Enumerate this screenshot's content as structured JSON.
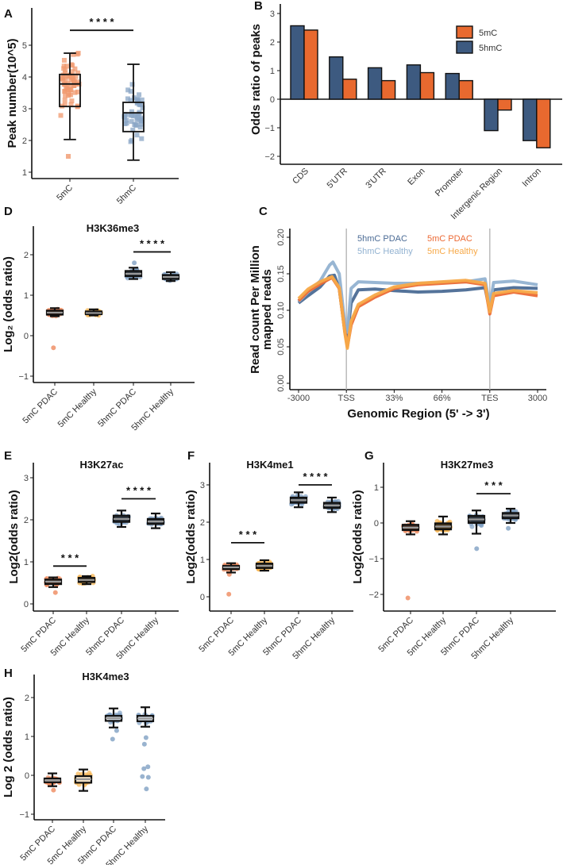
{
  "chart_data": [
    {
      "id": "A",
      "type": "boxplot",
      "panel_label": "A",
      "title": "",
      "ylabel": "Peak number(10^5)",
      "ylim": [
        0.8,
        5.9
      ],
      "yticks": [
        1,
        2,
        3,
        4,
        5
      ],
      "point_shape": "square",
      "categories": [
        "5mC",
        "5hmC"
      ],
      "groups": [
        {
          "name": "5mC",
          "color": "#f0986e",
          "median": 3.78,
          "q1": 3.07,
          "q3": 4.08,
          "whisker_low": 2.03,
          "whisker_high": 4.75,
          "outliers": [
            1.5
          ],
          "n": 60
        },
        {
          "name": "5hmC",
          "color": "#8aa6c6",
          "median": 2.87,
          "q1": 2.28,
          "q3": 3.2,
          "whisker_low": 1.38,
          "whisker_high": 4.4,
          "outliers": [],
          "n": 50
        }
      ],
      "significance": [
        {
          "from": 0,
          "to": 1,
          "label": "* * * *",
          "level": 5.47
        }
      ]
    },
    {
      "id": "B",
      "type": "bar",
      "panel_label": "B",
      "title": "",
      "xlabel": "",
      "ylabel": "Odds ratio of peaks",
      "ylim": [
        -2.2,
        3.3
      ],
      "yticks": [
        -2,
        -1,
        0,
        1,
        2,
        3
      ],
      "categories": [
        "CDS",
        "5'UTR",
        "3'UTR",
        "Exon",
        "Promoter",
        "Intergenic Region",
        "Intron"
      ],
      "legend": "top-right",
      "series": [
        {
          "name": "5hmC",
          "color": "#3d5a80",
          "values": [
            2.57,
            1.48,
            1.1,
            1.2,
            0.9,
            -1.1,
            -1.45
          ]
        },
        {
          "name": "5mC",
          "color": "#e8692f",
          "values": [
            2.42,
            0.7,
            0.65,
            0.93,
            0.65,
            -0.38,
            -1.7
          ]
        }
      ],
      "legend_order": [
        "5mC",
        "5hmC"
      ]
    },
    {
      "id": "C",
      "type": "line",
      "panel_label": "C",
      "title": "",
      "xlabel": "Genomic Region (5' -> 3')",
      "ylabel_lines": [
        "Read count Per Million",
        "mapped reads"
      ],
      "ylim": [
        0,
        0.2
      ],
      "yticks": [
        "0.00",
        "0.05",
        "0.10",
        "0.15",
        "0.20"
      ],
      "xticks": [
        "-3000",
        "TSS",
        "33%",
        "66%",
        "TES",
        "3000"
      ],
      "xtick_positions": [
        0,
        1,
        2,
        3,
        4,
        5
      ],
      "vlines": [
        1,
        4
      ],
      "series": [
        {
          "name": "5hmC PDAC",
          "color": "#4b6b95",
          "points": [
            [
              0,
              0.11
            ],
            [
              0.2,
              0.12
            ],
            [
              0.45,
              0.132
            ],
            [
              0.65,
              0.147
            ],
            [
              0.75,
              0.148
            ],
            [
              0.85,
              0.13
            ],
            [
              0.97,
              0.07
            ],
            [
              1.02,
              0.065
            ],
            [
              1.1,
              0.11
            ],
            [
              1.25,
              0.128
            ],
            [
              1.6,
              0.129
            ],
            [
              2,
              0.127
            ],
            [
              2.5,
              0.125
            ],
            [
              3,
              0.126
            ],
            [
              3.5,
              0.128
            ],
            [
              3.9,
              0.131
            ],
            [
              4.0,
              0.1
            ],
            [
              4.08,
              0.128
            ],
            [
              4.5,
              0.131
            ],
            [
              5,
              0.13
            ]
          ]
        },
        {
          "name": "5hmC Healthy",
          "color": "#92b2d1",
          "points": [
            [
              0,
              0.112
            ],
            [
              0.2,
              0.125
            ],
            [
              0.45,
              0.14
            ],
            [
              0.65,
              0.162
            ],
            [
              0.72,
              0.166
            ],
            [
              0.85,
              0.15
            ],
            [
              0.97,
              0.08
            ],
            [
              1.02,
              0.07
            ],
            [
              1.1,
              0.13
            ],
            [
              1.25,
              0.139
            ],
            [
              1.6,
              0.138
            ],
            [
              2,
              0.137
            ],
            [
              2.5,
              0.137
            ],
            [
              3,
              0.138
            ],
            [
              3.5,
              0.139
            ],
            [
              3.9,
              0.143
            ],
            [
              4.0,
              0.105
            ],
            [
              4.08,
              0.138
            ],
            [
              4.5,
              0.14
            ],
            [
              5,
              0.135
            ]
          ]
        },
        {
          "name": "5mC PDAC",
          "color": "#ec6a35",
          "points": [
            [
              0,
              0.113
            ],
            [
              0.2,
              0.126
            ],
            [
              0.45,
              0.136
            ],
            [
              0.7,
              0.145
            ],
            [
              0.85,
              0.13
            ],
            [
              0.97,
              0.07
            ],
            [
              1.02,
              0.05
            ],
            [
              1.1,
              0.08
            ],
            [
              1.25,
              0.105
            ],
            [
              1.6,
              0.118
            ],
            [
              2,
              0.13
            ],
            [
              2.5,
              0.135
            ],
            [
              3,
              0.137
            ],
            [
              3.5,
              0.139
            ],
            [
              3.9,
              0.135
            ],
            [
              4.0,
              0.095
            ],
            [
              4.08,
              0.12
            ],
            [
              4.5,
              0.125
            ],
            [
              5,
              0.12
            ]
          ]
        },
        {
          "name": "5mC Healthy",
          "color": "#f7a948",
          "points": [
            [
              0,
              0.116
            ],
            [
              0.2,
              0.129
            ],
            [
              0.45,
              0.139
            ],
            [
              0.7,
              0.146
            ],
            [
              0.85,
              0.131
            ],
            [
              0.97,
              0.068
            ],
            [
              1.02,
              0.048
            ],
            [
              1.1,
              0.085
            ],
            [
              1.25,
              0.108
            ],
            [
              1.6,
              0.121
            ],
            [
              2,
              0.132
            ],
            [
              2.5,
              0.137
            ],
            [
              3,
              0.139
            ],
            [
              3.5,
              0.141
            ],
            [
              3.9,
              0.137
            ],
            [
              4.0,
              0.098
            ],
            [
              4.08,
              0.123
            ],
            [
              4.5,
              0.127
            ],
            [
              5,
              0.124
            ]
          ]
        }
      ]
    },
    {
      "id": "D",
      "type": "boxplot",
      "panel_label": "D",
      "title": "H3K36me3",
      "ylabel": "Log₂ (odds ratio)",
      "ylim": [
        -1.2,
        2.7
      ],
      "yticks": [
        -1,
        0,
        1,
        2
      ],
      "categories": [
        "5mC PDAC",
        "5mC Healthy",
        "5hmC PDAC",
        "5hmC Healthy"
      ],
      "groups": [
        {
          "name": "5mC PDAC",
          "color": "#ef8a5e",
          "median": 0.57,
          "q1": 0.52,
          "q3": 0.62,
          "whisker_low": 0.48,
          "whisker_high": 0.68,
          "outliers": [
            -0.3
          ],
          "n": 40
        },
        {
          "name": "5mC Healthy",
          "color": "#f6b24c",
          "median": 0.56,
          "q1": 0.53,
          "q3": 0.6,
          "whisker_low": 0.5,
          "whisker_high": 0.65,
          "outliers": [],
          "n": 40
        },
        {
          "name": "5hmC PDAC",
          "color": "#7fa0c3",
          "median": 1.53,
          "q1": 1.47,
          "q3": 1.6,
          "whisker_low": 1.4,
          "whisker_high": 1.68,
          "outliers": [
            1.8
          ],
          "n": 40
        },
        {
          "name": "5hmC Healthy",
          "color": "#7fa0c3",
          "median": 1.45,
          "q1": 1.4,
          "q3": 1.5,
          "whisker_low": 1.35,
          "whisker_high": 1.57,
          "outliers": [],
          "n": 40
        }
      ],
      "significance": [
        {
          "from": 2,
          "to": 3,
          "label": "* * * *",
          "level": 2.07
        }
      ]
    },
    {
      "id": "E",
      "type": "boxplot",
      "panel_label": "E",
      "title": "H3K27ac",
      "ylabel": "Log2(odds ratio)",
      "ylim": [
        -0.15,
        3.4
      ],
      "yticks": [
        0,
        1,
        2,
        3
      ],
      "categories": [
        "5mC PDAC",
        "5mC Healthy",
        "5hmC PDAC",
        "5hmC Healthy"
      ],
      "groups": [
        {
          "name": "5mC PDAC",
          "color": "#ef8a5e",
          "median": 0.53,
          "q1": 0.47,
          "q3": 0.58,
          "whisker_low": 0.4,
          "whisker_high": 0.63,
          "outliers": [
            0.27
          ],
          "n": 40
        },
        {
          "name": "5mC Healthy",
          "color": "#f6b24c",
          "median": 0.57,
          "q1": 0.52,
          "q3": 0.62,
          "whisker_low": 0.47,
          "whisker_high": 0.66,
          "outliers": [],
          "n": 40
        },
        {
          "name": "5hmC PDAC",
          "color": "#7fa0c3",
          "median": 2.02,
          "q1": 1.95,
          "q3": 2.1,
          "whisker_low": 1.83,
          "whisker_high": 2.22,
          "outliers": [],
          "n": 40
        },
        {
          "name": "5hmC Healthy",
          "color": "#7fa0c3",
          "median": 1.96,
          "q1": 1.9,
          "q3": 2.02,
          "whisker_low": 1.8,
          "whisker_high": 2.15,
          "outliers": [],
          "n": 40
        }
      ],
      "significance": [
        {
          "from": 0,
          "to": 1,
          "label": "* * *",
          "level": 0.9
        },
        {
          "from": 2,
          "to": 3,
          "label": "* * * *",
          "level": 2.5
        }
      ]
    },
    {
      "id": "F",
      "type": "boxplot",
      "panel_label": "F",
      "title": "H3K4me1",
      "ylabel": "Log2(odds ratio)",
      "ylim": [
        -0.35,
        3.6
      ],
      "yticks": [
        0,
        1,
        2,
        3
      ],
      "categories": [
        "5mC PDAC",
        "5mC Healthy",
        "5hmC PDAC",
        "5hmC Healthy"
      ],
      "groups": [
        {
          "name": "5mC PDAC",
          "color": "#ef8a5e",
          "median": 0.79,
          "q1": 0.74,
          "q3": 0.83,
          "whisker_low": 0.65,
          "whisker_high": 0.9,
          "outliers": [
            0.07,
            0.6
          ],
          "n": 40
        },
        {
          "name": "5mC Healthy",
          "color": "#f6b24c",
          "median": 0.83,
          "q1": 0.77,
          "q3": 0.89,
          "whisker_low": 0.7,
          "whisker_high": 0.98,
          "outliers": [],
          "n": 40
        },
        {
          "name": "5hmC PDAC",
          "color": "#7fa0c3",
          "median": 2.59,
          "q1": 2.52,
          "q3": 2.66,
          "whisker_low": 2.4,
          "whisker_high": 2.8,
          "outliers": [],
          "n": 40
        },
        {
          "name": "5hmC Healthy",
          "color": "#7fa0c3",
          "median": 2.45,
          "q1": 2.38,
          "q3": 2.52,
          "whisker_low": 2.27,
          "whisker_high": 2.66,
          "outliers": [],
          "n": 40
        }
      ],
      "significance": [
        {
          "from": 0,
          "to": 1,
          "label": "* * *",
          "level": 1.45
        },
        {
          "from": 2,
          "to": 3,
          "label": "* * * *",
          "level": 3.0
        }
      ]
    },
    {
      "id": "G",
      "type": "boxplot",
      "panel_label": "G",
      "title": "H3K27me3",
      "ylabel": "Log2(odds ratio)",
      "ylim": [
        -2.5,
        1.7
      ],
      "yticks": [
        -2,
        -1,
        0,
        1
      ],
      "categories": [
        "5mC PDAC",
        "5mC Healthy",
        "5hmC PDAC",
        "5hmC Healthy"
      ],
      "groups": [
        {
          "name": "5mC PDAC",
          "color": "#ef8a5e",
          "median": -0.13,
          "q1": -0.2,
          "q3": -0.05,
          "whisker_low": -0.32,
          "whisker_high": 0.05,
          "outliers": [
            -2.1
          ],
          "n": 40
        },
        {
          "name": "5mC Healthy",
          "color": "#f6b24c",
          "median": -0.1,
          "q1": -0.18,
          "q3": -0.01,
          "whisker_low": -0.32,
          "whisker_high": 0.18,
          "outliers": [],
          "n": 40
        },
        {
          "name": "5hmC PDAC",
          "color": "#7fa0c3",
          "median": 0.1,
          "q1": 0.0,
          "q3": 0.2,
          "whisker_low": -0.3,
          "whisker_high": 0.35,
          "outliers": [
            -0.72
          ],
          "n": 40
        },
        {
          "name": "5hmC Healthy",
          "color": "#7fa0c3",
          "median": 0.21,
          "q1": 0.13,
          "q3": 0.28,
          "whisker_low": 0.0,
          "whisker_high": 0.4,
          "outliers": [
            -0.15
          ],
          "n": 40
        }
      ],
      "significance": [
        {
          "from": 2,
          "to": 3,
          "label": "* * *",
          "level": 0.82
        }
      ]
    },
    {
      "id": "H",
      "type": "boxplot",
      "panel_label": "H",
      "title": "H3K4me3",
      "ylabel": "Log 2 (odds ratio)",
      "ylim": [
        -1.15,
        2.6
      ],
      "yticks": [
        -1,
        0,
        1,
        2
      ],
      "categories": [
        "5mC PDAC",
        "5mC Healthy",
        "5hmC PDAC",
        "5hmC Healthy"
      ],
      "groups": [
        {
          "name": "5mC PDAC",
          "color": "#ef8a5e",
          "median": -0.13,
          "q1": -0.18,
          "q3": -0.08,
          "whisker_low": -0.28,
          "whisker_high": 0.05,
          "outliers": [
            -0.38
          ],
          "n": 40
        },
        {
          "name": "5mC Healthy",
          "color": "#f6b24c",
          "median": -0.1,
          "q1": -0.19,
          "q3": -0.02,
          "whisker_low": -0.4,
          "whisker_high": 0.15,
          "outliers": [],
          "n": 40
        },
        {
          "name": "5hmC PDAC",
          "color": "#7fa0c3",
          "median": 1.47,
          "q1": 1.4,
          "q3": 1.53,
          "whisker_low": 1.23,
          "whisker_high": 1.72,
          "outliers": [
            0.93,
            1.15
          ],
          "n": 40
        },
        {
          "name": "5hmC Healthy",
          "color": "#7fa0c3",
          "median": 1.46,
          "q1": 1.39,
          "q3": 1.53,
          "whisker_low": 1.25,
          "whisker_high": 1.75,
          "outliers": [
            0.97,
            0.8,
            0.22,
            0.17,
            -0.05,
            -0.03,
            -0.35
          ],
          "n": 40
        }
      ],
      "significance": []
    }
  ]
}
